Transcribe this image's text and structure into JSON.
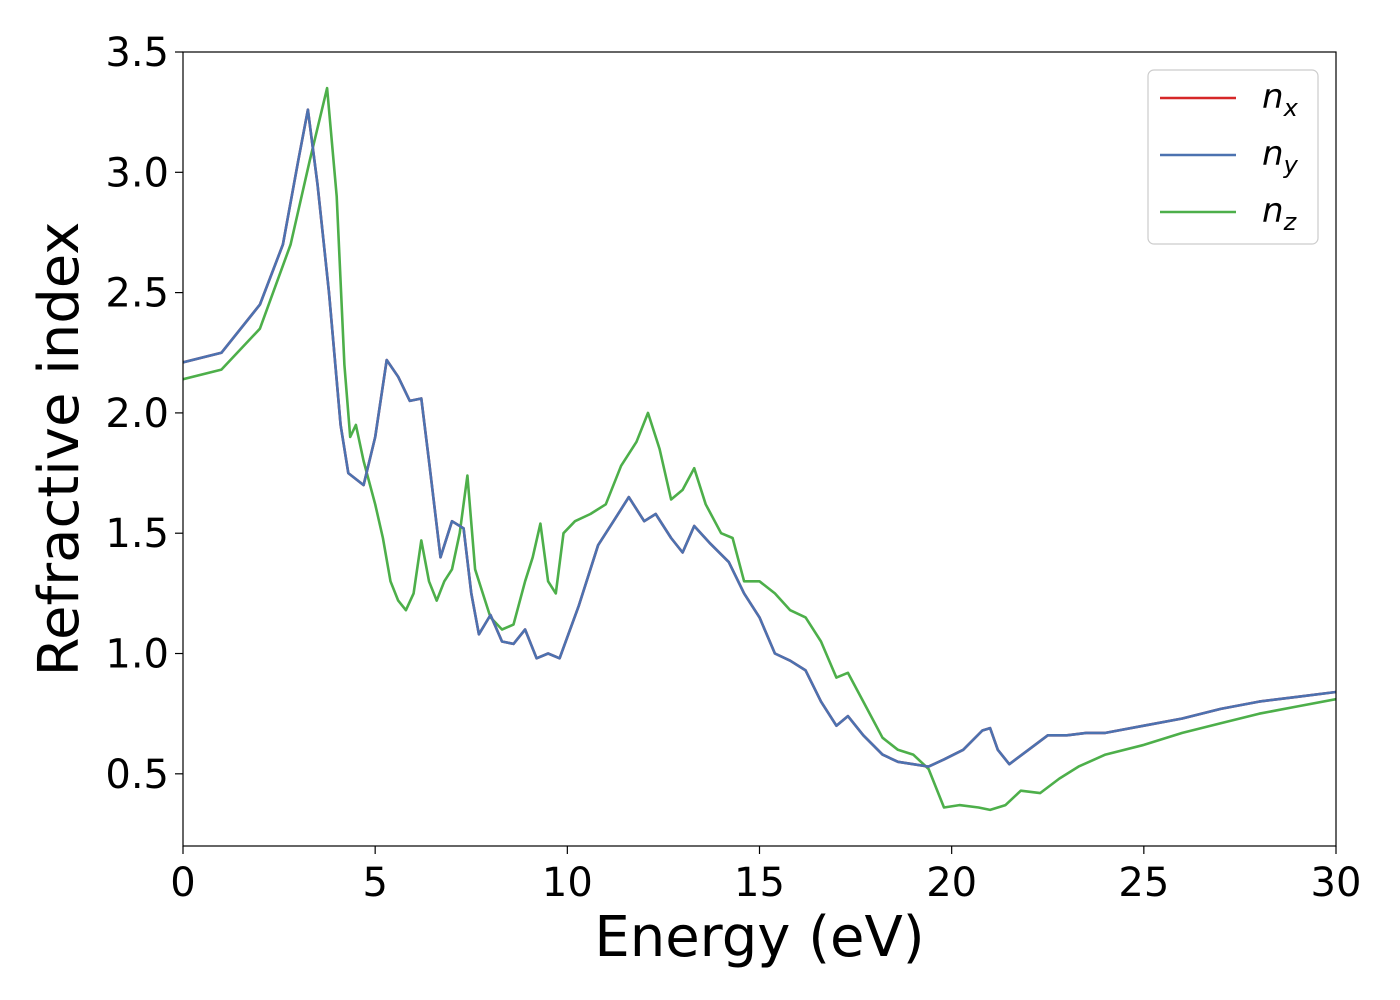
{
  "chart_data": {
    "type": "line",
    "title": "",
    "xlabel": "Energy (eV)",
    "ylabel": "Refractive index",
    "xlim": [
      0,
      30
    ],
    "ylim": [
      0.2,
      3.5
    ],
    "xticks": [
      "0",
      "5",
      "10",
      "15",
      "20",
      "25",
      "30"
    ],
    "yticks": [
      "0.5",
      "1.0",
      "1.5",
      "2.0",
      "2.5",
      "3.0",
      "3.5"
    ],
    "grid": false,
    "legend_position": "top-right",
    "series": [
      {
        "name": "n",
        "subscript": "x",
        "color": "#d62728",
        "points": [
          [
            0,
            2.21
          ],
          [
            1,
            2.25
          ],
          [
            2,
            2.45
          ],
          [
            2.6,
            2.7
          ],
          [
            3.0,
            3.05
          ],
          [
            3.25,
            3.26
          ],
          [
            3.5,
            2.95
          ],
          [
            3.8,
            2.5
          ],
          [
            4.1,
            1.95
          ],
          [
            4.3,
            1.75
          ],
          [
            4.7,
            1.7
          ],
          [
            5.0,
            1.9
          ],
          [
            5.3,
            2.22
          ],
          [
            5.6,
            2.15
          ],
          [
            5.9,
            2.05
          ],
          [
            6.2,
            2.06
          ],
          [
            6.4,
            1.8
          ],
          [
            6.7,
            1.4
          ],
          [
            7.0,
            1.55
          ],
          [
            7.3,
            1.52
          ],
          [
            7.5,
            1.25
          ],
          [
            7.7,
            1.08
          ],
          [
            8.0,
            1.16
          ],
          [
            8.3,
            1.05
          ],
          [
            8.6,
            1.04
          ],
          [
            8.9,
            1.1
          ],
          [
            9.2,
            0.98
          ],
          [
            9.5,
            1.0
          ],
          [
            9.8,
            0.98
          ],
          [
            10.3,
            1.2
          ],
          [
            10.8,
            1.45
          ],
          [
            11.2,
            1.55
          ],
          [
            11.6,
            1.65
          ],
          [
            12.0,
            1.55
          ],
          [
            12.3,
            1.58
          ],
          [
            12.7,
            1.48
          ],
          [
            13.0,
            1.42
          ],
          [
            13.3,
            1.53
          ],
          [
            13.7,
            1.46
          ],
          [
            14.2,
            1.38
          ],
          [
            14.6,
            1.25
          ],
          [
            15.0,
            1.15
          ],
          [
            15.4,
            1.0
          ],
          [
            15.8,
            0.97
          ],
          [
            16.2,
            0.93
          ],
          [
            16.6,
            0.8
          ],
          [
            17.0,
            0.7
          ],
          [
            17.3,
            0.74
          ],
          [
            17.7,
            0.66
          ],
          [
            18.2,
            0.58
          ],
          [
            18.6,
            0.55
          ],
          [
            19.0,
            0.54
          ],
          [
            19.4,
            0.53
          ],
          [
            19.8,
            0.56
          ],
          [
            20.3,
            0.6
          ],
          [
            20.8,
            0.68
          ],
          [
            21.0,
            0.69
          ],
          [
            21.2,
            0.6
          ],
          [
            21.5,
            0.54
          ],
          [
            22.0,
            0.6
          ],
          [
            22.5,
            0.66
          ],
          [
            23.0,
            0.66
          ],
          [
            23.5,
            0.67
          ],
          [
            24.0,
            0.67
          ],
          [
            25.0,
            0.7
          ],
          [
            26.0,
            0.73
          ],
          [
            27.0,
            0.77
          ],
          [
            28.0,
            0.8
          ],
          [
            29.0,
            0.82
          ],
          [
            30.0,
            0.84
          ]
        ]
      },
      {
        "name": "n",
        "subscript": "y",
        "color": "#4c72b0",
        "points": [
          [
            0,
            2.21
          ],
          [
            1,
            2.25
          ],
          [
            2,
            2.45
          ],
          [
            2.6,
            2.7
          ],
          [
            3.0,
            3.05
          ],
          [
            3.25,
            3.26
          ],
          [
            3.5,
            2.95
          ],
          [
            3.8,
            2.5
          ],
          [
            4.1,
            1.95
          ],
          [
            4.3,
            1.75
          ],
          [
            4.7,
            1.7
          ],
          [
            5.0,
            1.9
          ],
          [
            5.3,
            2.22
          ],
          [
            5.6,
            2.15
          ],
          [
            5.9,
            2.05
          ],
          [
            6.2,
            2.06
          ],
          [
            6.4,
            1.8
          ],
          [
            6.7,
            1.4
          ],
          [
            7.0,
            1.55
          ],
          [
            7.3,
            1.52
          ],
          [
            7.5,
            1.25
          ],
          [
            7.7,
            1.08
          ],
          [
            8.0,
            1.16
          ],
          [
            8.3,
            1.05
          ],
          [
            8.6,
            1.04
          ],
          [
            8.9,
            1.1
          ],
          [
            9.2,
            0.98
          ],
          [
            9.5,
            1.0
          ],
          [
            9.8,
            0.98
          ],
          [
            10.3,
            1.2
          ],
          [
            10.8,
            1.45
          ],
          [
            11.2,
            1.55
          ],
          [
            11.6,
            1.65
          ],
          [
            12.0,
            1.55
          ],
          [
            12.3,
            1.58
          ],
          [
            12.7,
            1.48
          ],
          [
            13.0,
            1.42
          ],
          [
            13.3,
            1.53
          ],
          [
            13.7,
            1.46
          ],
          [
            14.2,
            1.38
          ],
          [
            14.6,
            1.25
          ],
          [
            15.0,
            1.15
          ],
          [
            15.4,
            1.0
          ],
          [
            15.8,
            0.97
          ],
          [
            16.2,
            0.93
          ],
          [
            16.6,
            0.8
          ],
          [
            17.0,
            0.7
          ],
          [
            17.3,
            0.74
          ],
          [
            17.7,
            0.66
          ],
          [
            18.2,
            0.58
          ],
          [
            18.6,
            0.55
          ],
          [
            19.0,
            0.54
          ],
          [
            19.4,
            0.53
          ],
          [
            19.8,
            0.56
          ],
          [
            20.3,
            0.6
          ],
          [
            20.8,
            0.68
          ],
          [
            21.0,
            0.69
          ],
          [
            21.2,
            0.6
          ],
          [
            21.5,
            0.54
          ],
          [
            22.0,
            0.6
          ],
          [
            22.5,
            0.66
          ],
          [
            23.0,
            0.66
          ],
          [
            23.5,
            0.67
          ],
          [
            24.0,
            0.67
          ],
          [
            25.0,
            0.7
          ],
          [
            26.0,
            0.73
          ],
          [
            27.0,
            0.77
          ],
          [
            28.0,
            0.8
          ],
          [
            29.0,
            0.82
          ],
          [
            30.0,
            0.84
          ]
        ]
      },
      {
        "name": "n",
        "subscript": "z",
        "color": "#4daf4a",
        "points": [
          [
            0,
            2.14
          ],
          [
            1,
            2.18
          ],
          [
            2,
            2.35
          ],
          [
            2.8,
            2.7
          ],
          [
            3.3,
            3.05
          ],
          [
            3.75,
            3.35
          ],
          [
            4.0,
            2.9
          ],
          [
            4.2,
            2.2
          ],
          [
            4.35,
            1.9
          ],
          [
            4.5,
            1.95
          ],
          [
            4.7,
            1.8
          ],
          [
            5.0,
            1.62
          ],
          [
            5.2,
            1.48
          ],
          [
            5.4,
            1.3
          ],
          [
            5.6,
            1.22
          ],
          [
            5.8,
            1.18
          ],
          [
            6.0,
            1.25
          ],
          [
            6.2,
            1.47
          ],
          [
            6.4,
            1.3
          ],
          [
            6.6,
            1.22
          ],
          [
            6.8,
            1.3
          ],
          [
            7.0,
            1.35
          ],
          [
            7.2,
            1.5
          ],
          [
            7.4,
            1.74
          ],
          [
            7.6,
            1.35
          ],
          [
            7.8,
            1.25
          ],
          [
            8.0,
            1.15
          ],
          [
            8.3,
            1.1
          ],
          [
            8.6,
            1.12
          ],
          [
            8.9,
            1.3
          ],
          [
            9.1,
            1.4
          ],
          [
            9.3,
            1.54
          ],
          [
            9.5,
            1.3
          ],
          [
            9.7,
            1.25
          ],
          [
            9.9,
            1.5
          ],
          [
            10.2,
            1.55
          ],
          [
            10.6,
            1.58
          ],
          [
            11.0,
            1.62
          ],
          [
            11.4,
            1.78
          ],
          [
            11.8,
            1.88
          ],
          [
            12.1,
            2.0
          ],
          [
            12.4,
            1.85
          ],
          [
            12.7,
            1.64
          ],
          [
            13.0,
            1.68
          ],
          [
            13.3,
            1.77
          ],
          [
            13.6,
            1.62
          ],
          [
            14.0,
            1.5
          ],
          [
            14.3,
            1.48
          ],
          [
            14.6,
            1.3
          ],
          [
            15.0,
            1.3
          ],
          [
            15.4,
            1.25
          ],
          [
            15.8,
            1.18
          ],
          [
            16.2,
            1.15
          ],
          [
            16.6,
            1.05
          ],
          [
            17.0,
            0.9
          ],
          [
            17.3,
            0.92
          ],
          [
            17.7,
            0.8
          ],
          [
            18.2,
            0.65
          ],
          [
            18.6,
            0.6
          ],
          [
            19.0,
            0.58
          ],
          [
            19.4,
            0.52
          ],
          [
            19.8,
            0.36
          ],
          [
            20.2,
            0.37
          ],
          [
            20.7,
            0.36
          ],
          [
            21.0,
            0.35
          ],
          [
            21.4,
            0.37
          ],
          [
            21.8,
            0.43
          ],
          [
            22.3,
            0.42
          ],
          [
            22.8,
            0.48
          ],
          [
            23.3,
            0.53
          ],
          [
            24.0,
            0.58
          ],
          [
            25.0,
            0.62
          ],
          [
            26.0,
            0.67
          ],
          [
            27.0,
            0.71
          ],
          [
            28.0,
            0.75
          ],
          [
            29.0,
            0.78
          ],
          [
            30.0,
            0.81
          ]
        ]
      }
    ]
  }
}
